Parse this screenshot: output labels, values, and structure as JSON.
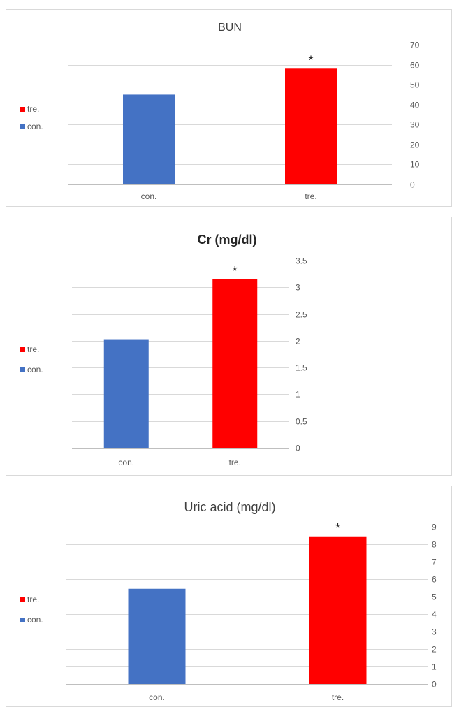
{
  "chart_data": [
    {
      "type": "bar",
      "title": "BUN",
      "categories": [
        "con.",
        "tre."
      ],
      "values": [
        45,
        58
      ],
      "colors": [
        "#4472c4",
        "#ff0000"
      ],
      "annotations": [
        "",
        "*"
      ],
      "ylim": [
        0,
        70
      ],
      "yticks": [
        0,
        10,
        20,
        30,
        40,
        50,
        60,
        70
      ],
      "y_axis_position": "right",
      "grid": true,
      "legend": {
        "position": "left",
        "entries": [
          {
            "label": "tre.",
            "color": "#ff0000"
          },
          {
            "label": "con.",
            "color": "#4472c4"
          }
        ]
      }
    },
    {
      "type": "bar",
      "title": "Cr (mg/dl)",
      "categories": [
        "con.",
        "tre."
      ],
      "values": [
        2.03,
        3.15
      ],
      "colors": [
        "#4472c4",
        "#ff0000"
      ],
      "annotations": [
        "",
        "*"
      ],
      "ylim": [
        0,
        3.5
      ],
      "yticks": [
        0,
        0.5,
        1,
        1.5,
        2,
        2.5,
        3,
        3.5
      ],
      "y_axis_position": "right",
      "grid": true,
      "legend": {
        "position": "left",
        "entries": [
          {
            "label": "tre.",
            "color": "#ff0000"
          },
          {
            "label": "con.",
            "color": "#4472c4"
          }
        ]
      }
    },
    {
      "type": "bar",
      "title": "Uric acid (mg/dl)",
      "categories": [
        "con.",
        "tre."
      ],
      "values": [
        5.45,
        8.45
      ],
      "colors": [
        "#4472c4",
        "#ff0000"
      ],
      "annotations": [
        "",
        "*"
      ],
      "ylim": [
        0,
        9
      ],
      "yticks": [
        0,
        1,
        2,
        3,
        4,
        5,
        6,
        7,
        8,
        9
      ],
      "y_axis_position": "right",
      "grid": true,
      "legend": {
        "position": "left",
        "entries": [
          {
            "label": "tre.",
            "color": "#ff0000"
          },
          {
            "label": "con.",
            "color": "#4472c4"
          }
        ]
      }
    }
  ]
}
